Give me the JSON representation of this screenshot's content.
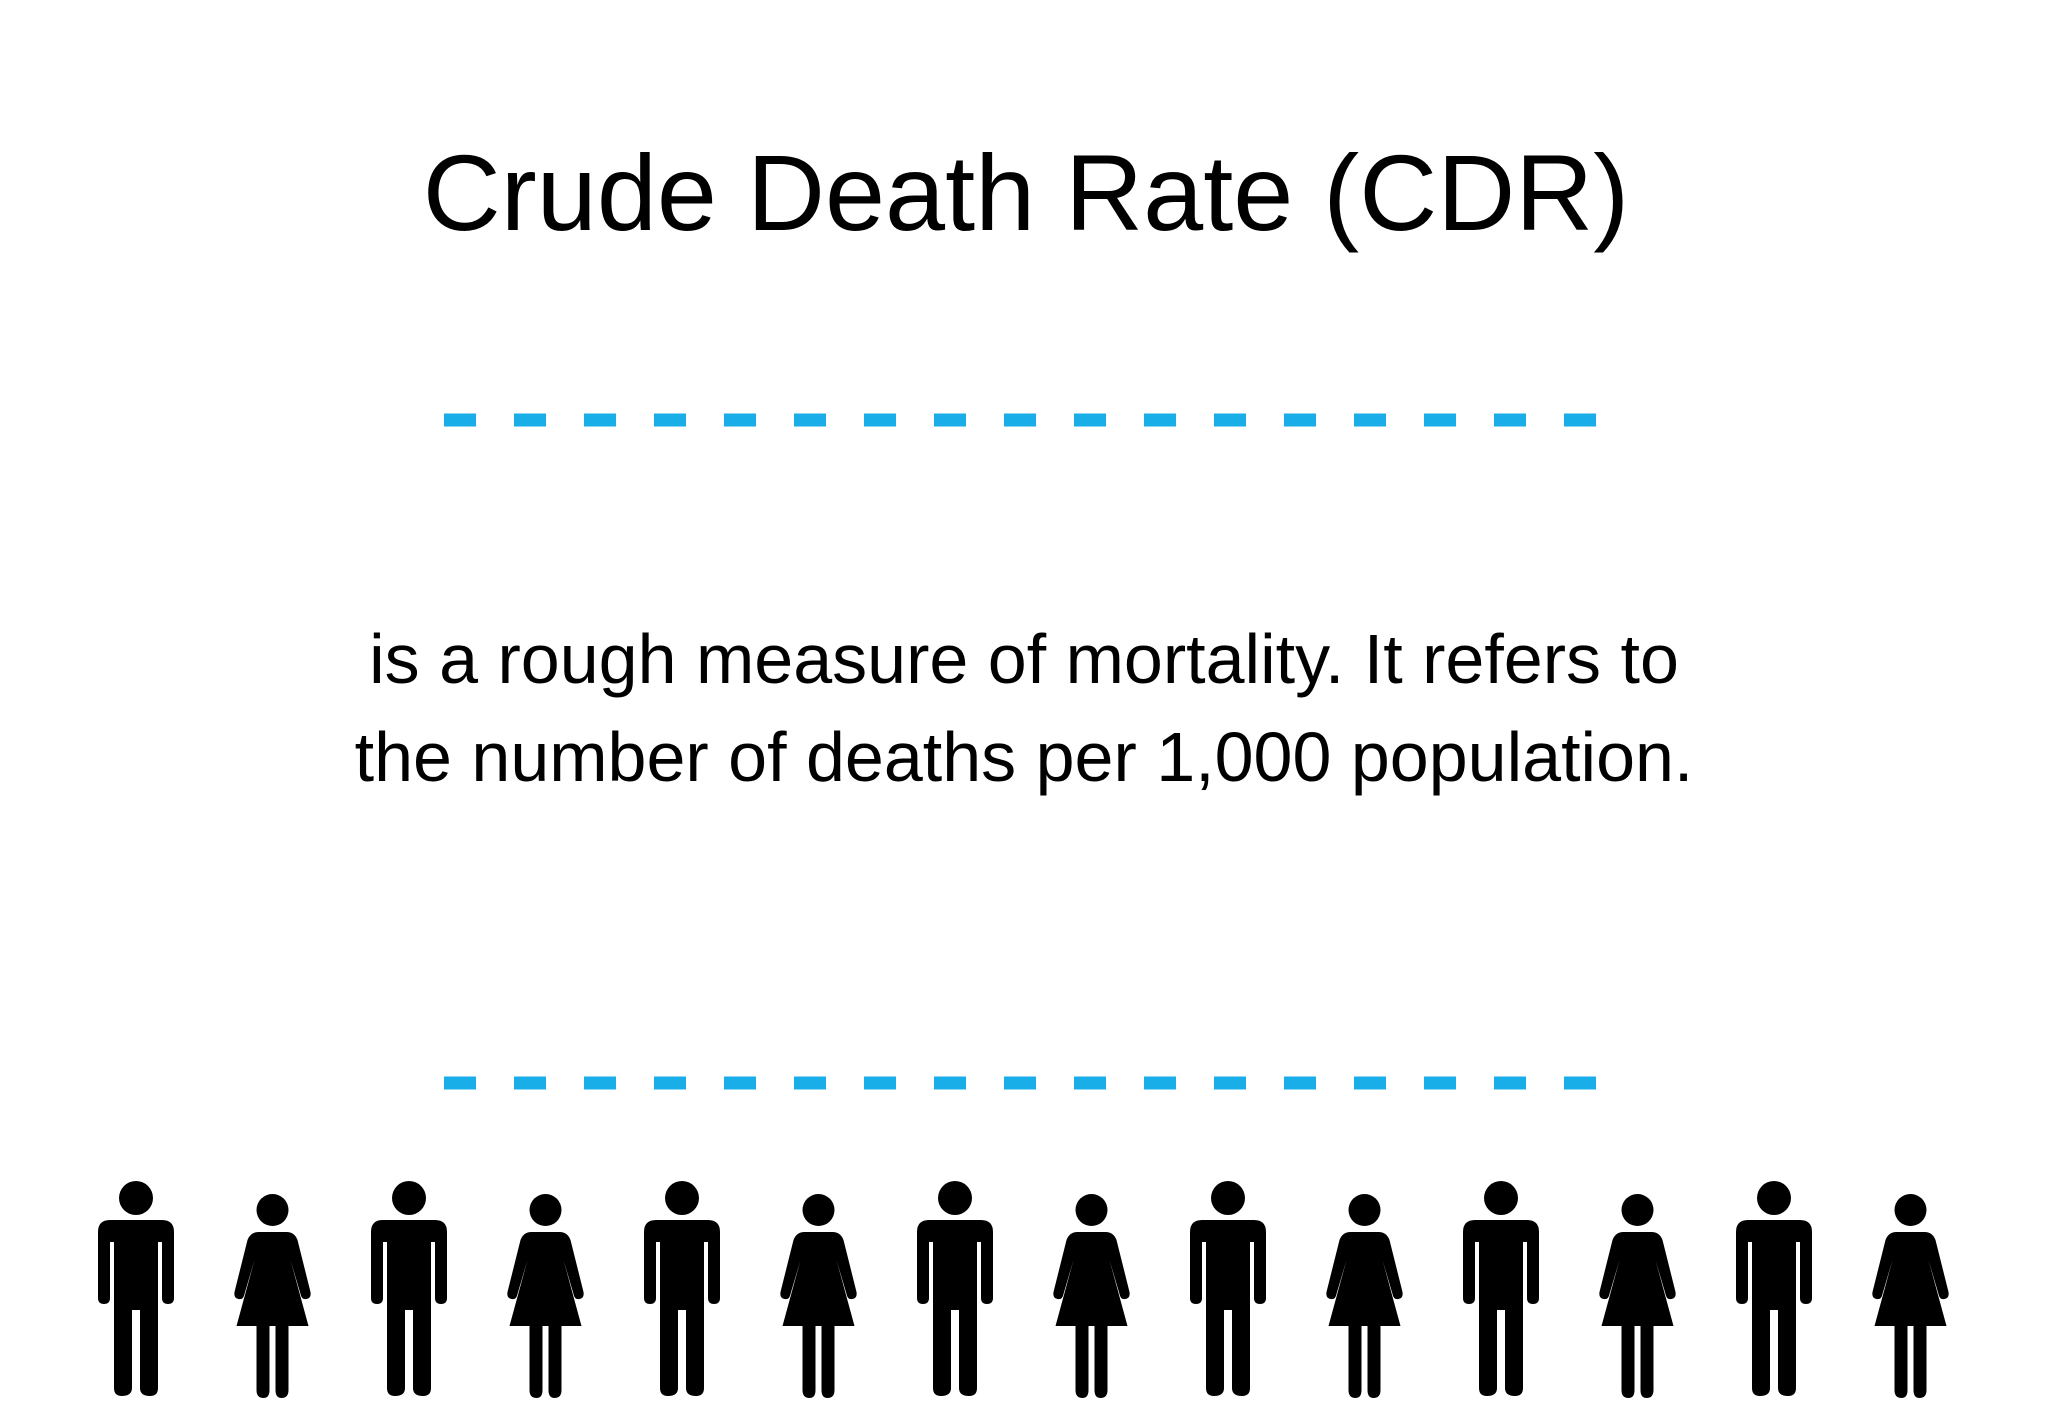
{
  "title": "Crude Death Rate (CDR)",
  "body": [
    "is a rough measure of mortality. It refers to",
    "the number of deaths per 1,000 population."
  ]
}
